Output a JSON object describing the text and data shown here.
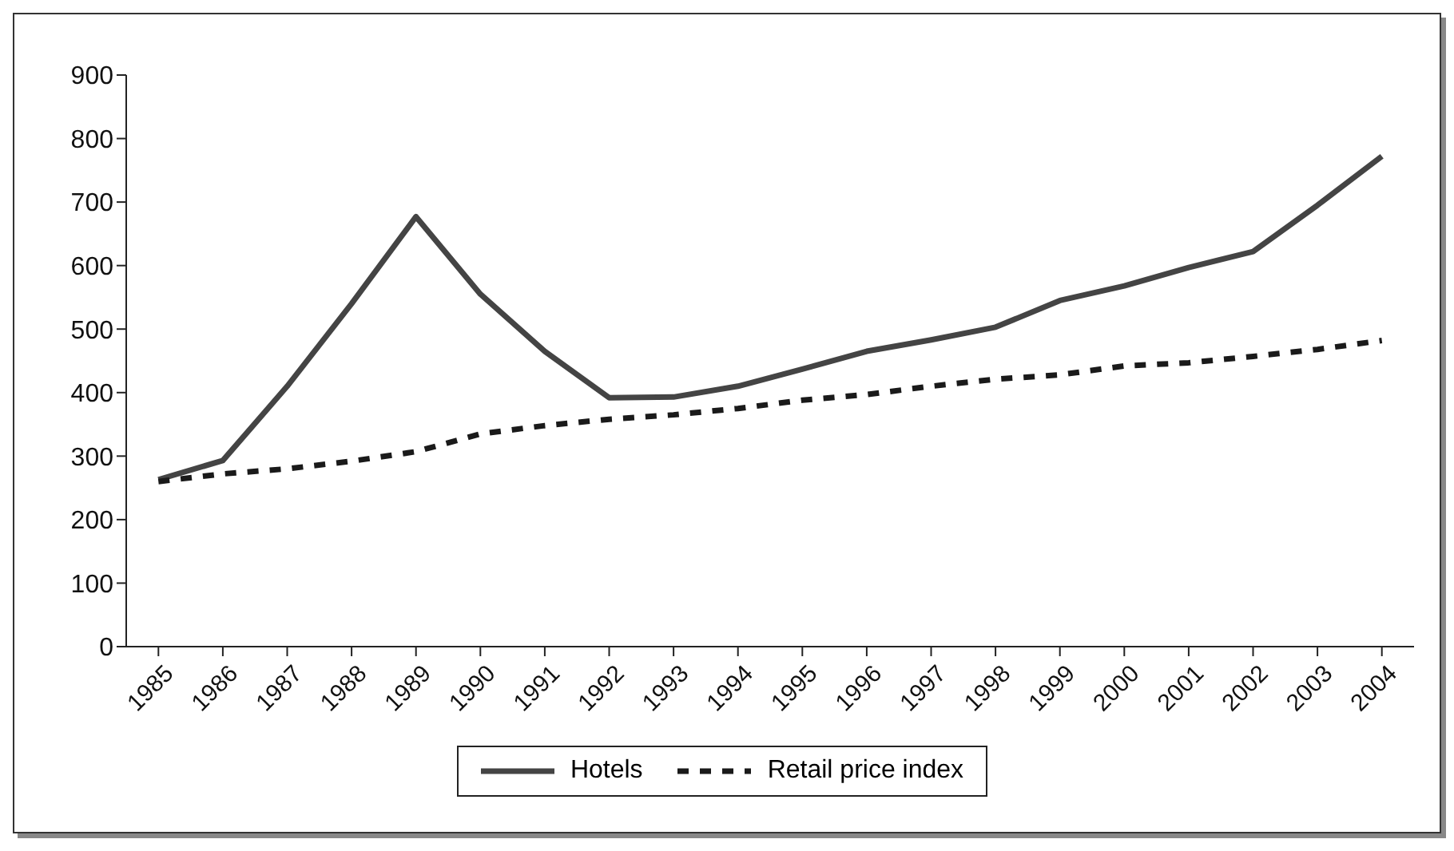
{
  "chart_data": {
    "type": "line",
    "categories": [
      "1985",
      "1986",
      "1987",
      "1988",
      "1989",
      "1990",
      "1991",
      "1992",
      "1993",
      "1994",
      "1995",
      "1996",
      "1997",
      "1998",
      "1999",
      "2000",
      "2001",
      "2002",
      "2003",
      "2004"
    ],
    "series": [
      {
        "name": "Hotels",
        "color": "#444444",
        "line_style": "solid",
        "values": [
          263,
          293,
          410,
          540,
          677,
          555,
          465,
          392,
          393,
          410,
          437,
          465,
          483,
          503,
          545,
          568,
          597,
          622,
          695,
          772
        ]
      },
      {
        "name": "Retail price index",
        "color": "#1a1a1a",
        "line_style": "dashed",
        "values": [
          260,
          272,
          280,
          292,
          307,
          335,
          348,
          358,
          365,
          375,
          388,
          397,
          410,
          421,
          428,
          442,
          447,
          457,
          468,
          482
        ]
      }
    ],
    "ylim": [
      0,
      900
    ],
    "yticks": [
      0,
      100,
      200,
      300,
      400,
      500,
      600,
      700,
      800,
      900
    ],
    "grid": false,
    "legend": "bottom",
    "marker": "none"
  }
}
